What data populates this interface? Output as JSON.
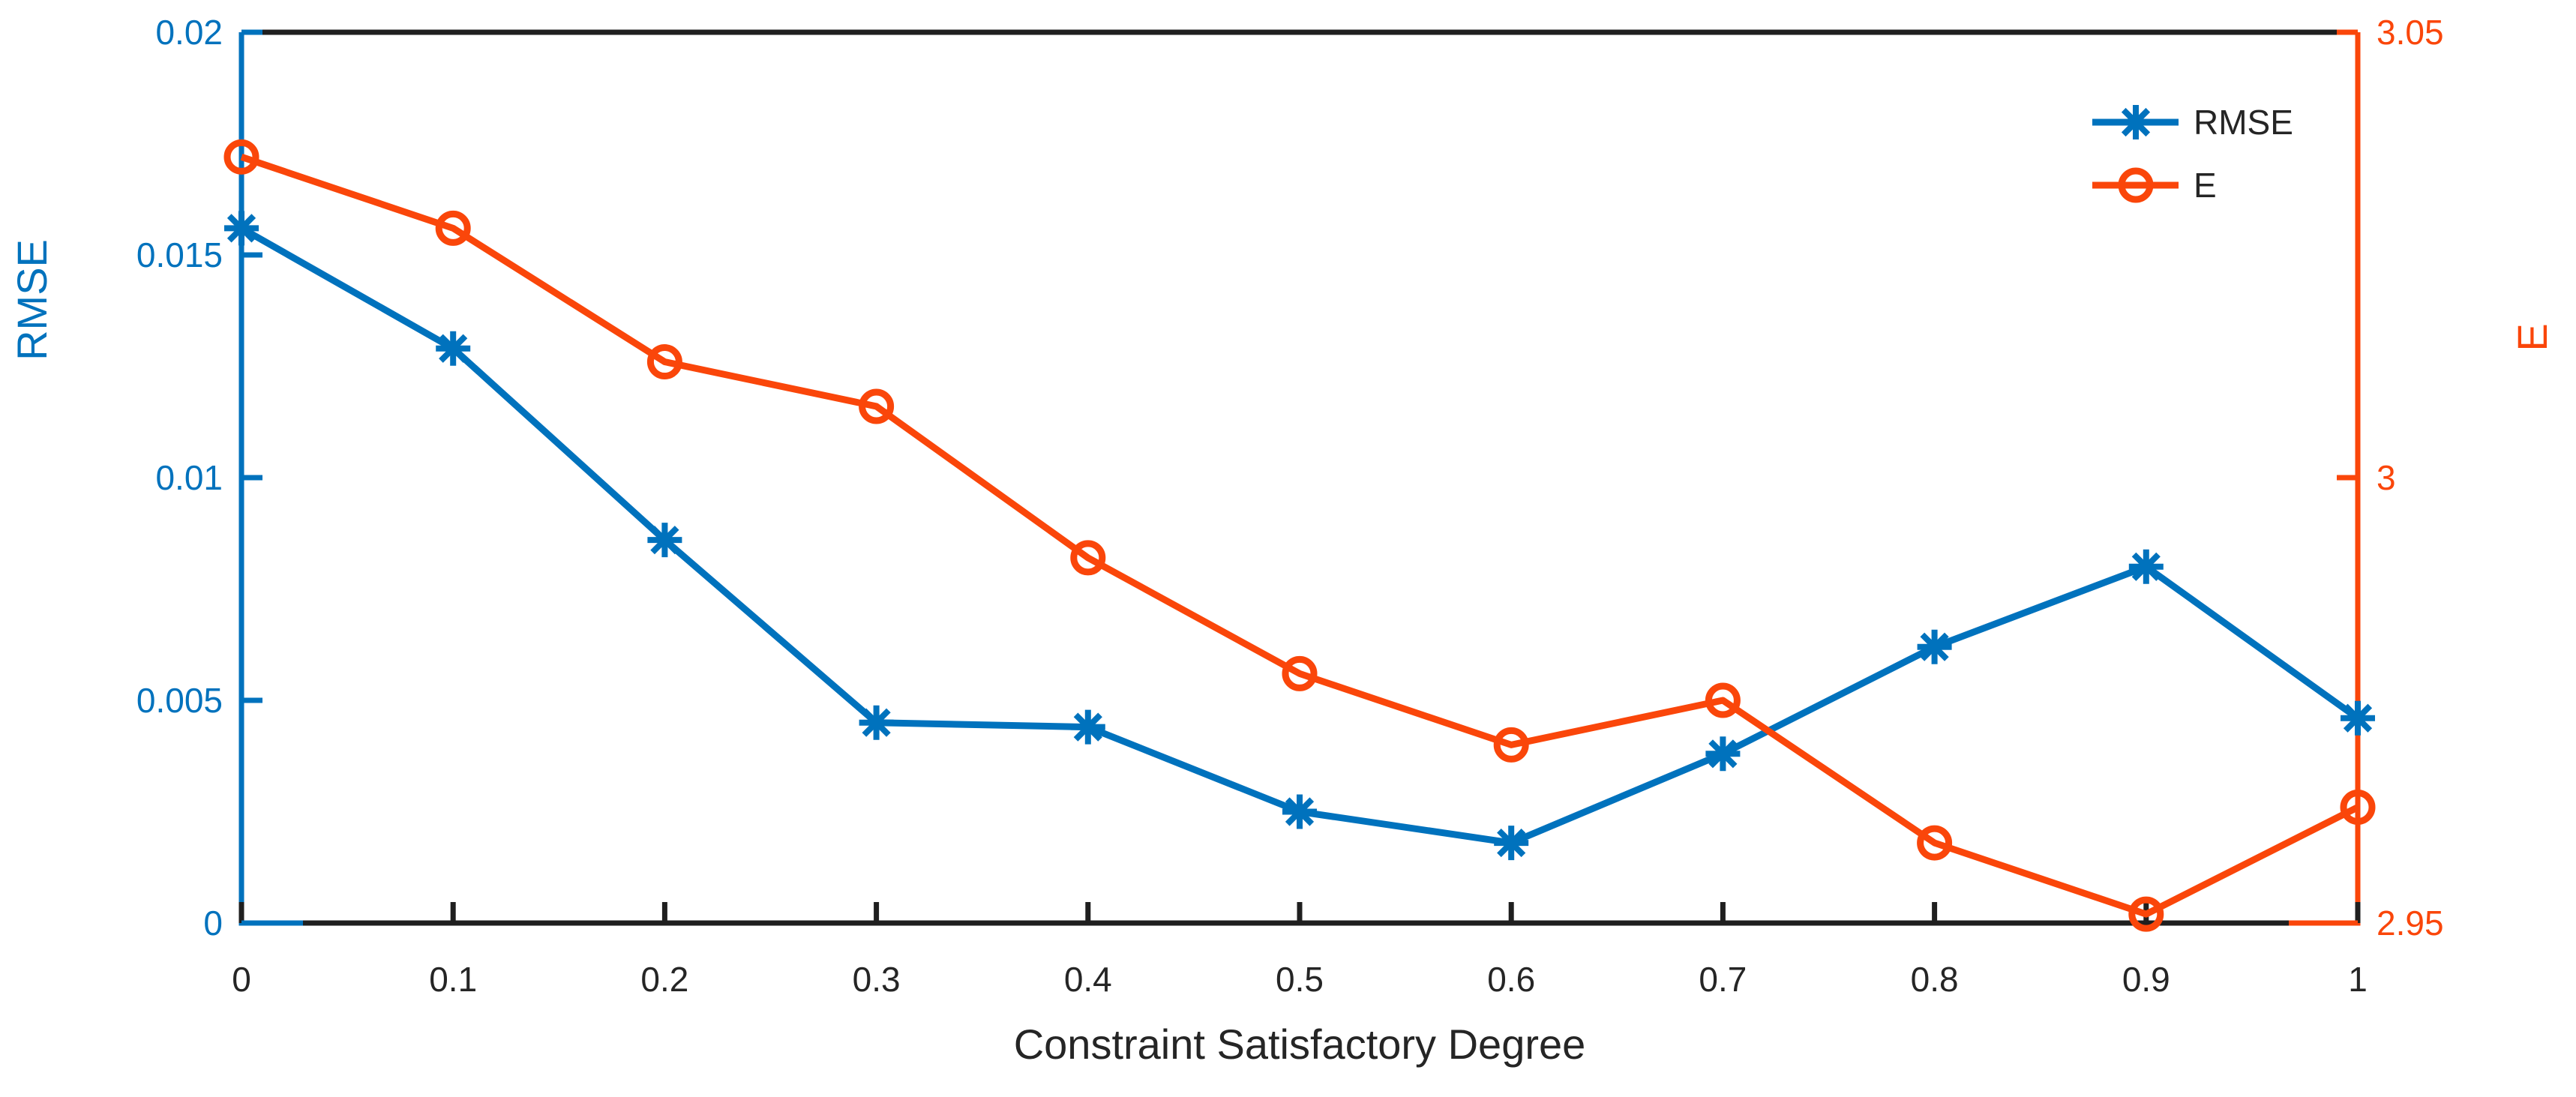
{
  "figure": {
    "background": "#ffffff",
    "frame_color": "#1f1f1f",
    "text_color": "#252525"
  },
  "axes": {
    "x_axis": {
      "label": "Constraint Satisfactory Degree",
      "tick_labels": [
        "0",
        "0.1",
        "0.2",
        "0.3",
        "0.4",
        "0.5",
        "0.6",
        "0.7",
        "0.8",
        "0.9",
        "1"
      ],
      "tick_values": [
        0,
        0.1,
        0.2,
        0.3,
        0.4,
        0.5,
        0.6,
        0.7,
        0.8,
        0.9,
        1
      ],
      "range": [
        0,
        1
      ],
      "color": "#1f1f1f"
    },
    "left_axis": {
      "label": "RMSE",
      "tick_labels": [
        "0",
        "0.005",
        "0.01",
        "0.015",
        "0.02"
      ],
      "tick_values": [
        0,
        0.005,
        0.01,
        0.015,
        0.02
      ],
      "range": [
        0,
        0.02
      ],
      "color": "#0072BD"
    },
    "right_axis": {
      "label": "E",
      "tick_labels": [
        "2.95",
        "3",
        "3.05"
      ],
      "tick_values": [
        2.95,
        3,
        3.05
      ],
      "range": [
        2.95,
        3.05
      ],
      "color": "#FA460A"
    }
  },
  "legend": {
    "items": [
      {
        "label": "RMSE",
        "marker": "asterisk-marker",
        "color": "#0072BD"
      },
      {
        "label": "E",
        "marker": "circle-marker",
        "color": "#FA460A"
      }
    ],
    "position": "top-right"
  },
  "chart_data": {
    "type": "line",
    "title": "",
    "xlabel": "Constraint Satisfactory Degree",
    "ylabel_left": "RMSE",
    "ylabel_right": "E",
    "x": [
      0,
      0.1,
      0.2,
      0.3,
      0.4,
      0.5,
      0.6,
      0.7,
      0.8,
      0.9,
      1
    ],
    "xlim": [
      0,
      1
    ],
    "ylim_left": [
      0,
      0.02
    ],
    "ylim_right": [
      2.95,
      3.05
    ],
    "grid": false,
    "legend_position": "top-right",
    "series": [
      {
        "name": "RMSE",
        "axis": "left",
        "color": "#0072BD",
        "marker": "asterisk",
        "values": [
          0.0156,
          0.0129,
          0.0086,
          0.0045,
          0.0044,
          0.0025,
          0.0018,
          0.0038,
          0.0062,
          0.008,
          0.0046
        ]
      },
      {
        "name": "E",
        "axis": "right",
        "color": "#FA460A",
        "marker": "circle",
        "values": [
          3.036,
          3.028,
          3.013,
          3.008,
          2.991,
          2.978,
          2.97,
          2.975,
          2.959,
          2.951,
          2.963
        ]
      }
    ]
  }
}
